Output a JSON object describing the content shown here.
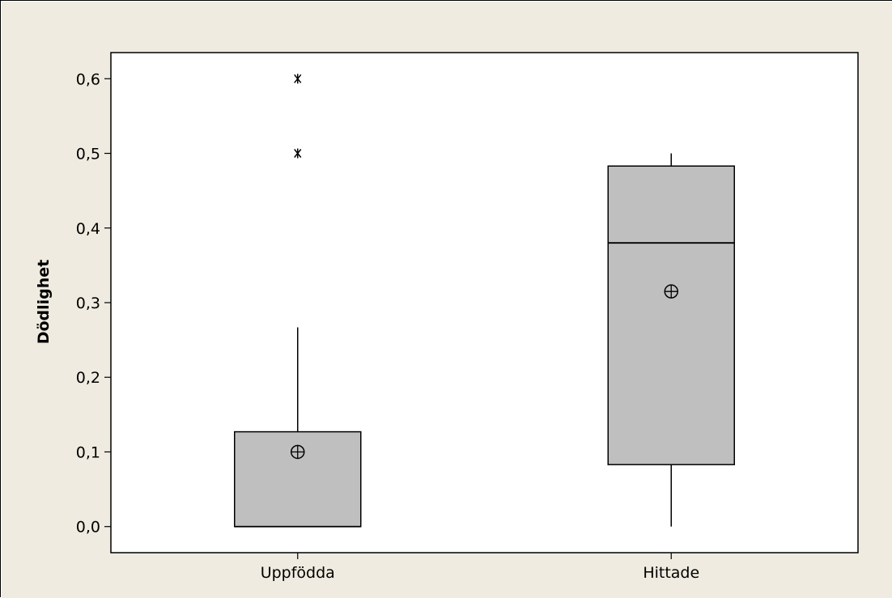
{
  "colors": {
    "page_background": "#efebe0",
    "plot_background": "#ffffff",
    "box_fill": "#bfbfbf",
    "line": "#000000"
  },
  "chart_data": {
    "type": "boxplot",
    "title": "",
    "xlabel": "",
    "ylabel": "Dödlighet",
    "ylim": [
      -0.035,
      0.635
    ],
    "yticks": [
      0.0,
      0.1,
      0.2,
      0.3,
      0.4,
      0.5,
      0.6
    ],
    "ytick_labels": [
      "0,0",
      "0,1",
      "0,2",
      "0,3",
      "0,4",
      "0,5",
      "0,6"
    ],
    "grid": false,
    "legend": "none",
    "categories": [
      "Uppfödda",
      "Hittade"
    ],
    "boxes": [
      {
        "category": "Uppfödda",
        "whisker_low": 0.0,
        "q1": 0.0,
        "median": 0.0,
        "q3": 0.127,
        "whisker_high": 0.267,
        "mean": 0.1,
        "outliers": [
          0.5,
          0.6
        ]
      },
      {
        "category": "Hittade",
        "whisker_low": 0.0,
        "q1": 0.083,
        "median": 0.38,
        "q3": 0.483,
        "whisker_high": 0.5,
        "mean": 0.315,
        "outliers": []
      }
    ]
  }
}
